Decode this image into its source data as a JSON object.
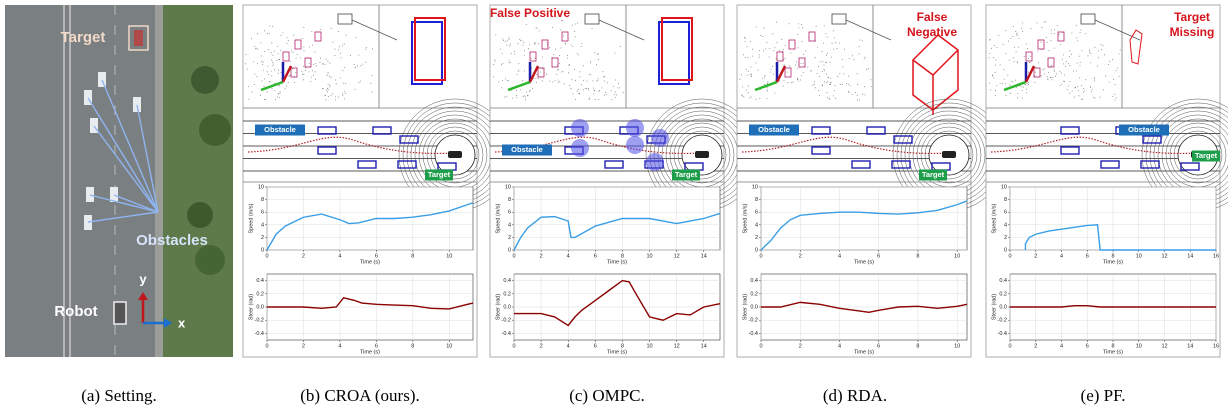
{
  "setting": {
    "target": "Target",
    "obstacles": "Obstacles",
    "robot": "Robot",
    "axis_y": "y",
    "axis_x": "x"
  },
  "panels": [
    {
      "caption": "(a) Setting."
    },
    {
      "caption": "(b) CROA (ours).",
      "obstacle": "Obstacle",
      "target": "Target"
    },
    {
      "caption": "(c) OMPC.",
      "annotation": [
        "False Positive"
      ],
      "obstacle": "Obstacle",
      "target": "Target"
    },
    {
      "caption": "(d) RDA.",
      "annotation": [
        "False",
        "Negative"
      ],
      "obstacle": "Obstacle",
      "target": "Target"
    },
    {
      "caption": "(e) PF.",
      "annotation": [
        "Target",
        "Missing"
      ],
      "obstacle": "Obstacle",
      "target": "Target"
    }
  ],
  "chart_data": [
    {
      "type": "line",
      "ylabel": "Speed (m/s)",
      "xlabel": "Time (s)",
      "color": "#3a9ee6",
      "grid": true,
      "x": [
        0,
        0.5,
        1,
        2,
        3,
        4,
        4.5,
        5,
        6,
        7,
        8,
        9,
        10,
        11,
        11.3
      ],
      "values": [
        0,
        2.5,
        3.8,
        5.2,
        5.7,
        4.8,
        4.2,
        4.3,
        5,
        5,
        5.2,
        5.6,
        6.2,
        7.2,
        7.5
      ],
      "xlim": [
        0,
        11.3
      ],
      "ylim": [
        0,
        10
      ],
      "xticks": [
        0,
        2,
        4,
        6,
        8,
        10
      ],
      "yticks": [
        0,
        2,
        4,
        6,
        8,
        10
      ]
    },
    {
      "type": "line",
      "ylabel": "Steer (rad)",
      "xlabel": "Time (s)",
      "color": "#8b0000",
      "grid": true,
      "x": [
        0,
        1,
        2,
        3,
        3.8,
        4.2,
        4.8,
        5.2,
        6,
        7,
        8,
        9,
        10,
        11,
        11.3
      ],
      "values": [
        0,
        0,
        0,
        -0.02,
        0,
        0.14,
        0.1,
        0.06,
        0.04,
        0.03,
        0.02,
        -0.02,
        -0.03,
        0.04,
        0.06
      ],
      "xlim": [
        0,
        11.3
      ],
      "ylim": [
        -0.5,
        0.5
      ],
      "xticks": [
        0,
        2,
        4,
        6,
        8,
        10
      ],
      "yticks": [
        -0.4,
        -0.2,
        {
          "value": 0,
          "label": "0.0"
        },
        0.2,
        0.4
      ]
    },
    {
      "type": "line",
      "ylabel": "Speed (m/s)",
      "xlabel": "Time (s)",
      "color": "#3a9ee6",
      "grid": true,
      "x": [
        0,
        0.5,
        1,
        2,
        3,
        4,
        4.2,
        4.5,
        6,
        8,
        10,
        12,
        14,
        15.2
      ],
      "values": [
        0,
        2,
        3.5,
        5.2,
        5.3,
        4.6,
        2,
        2,
        3.8,
        5,
        5,
        4.2,
        5,
        5.8
      ],
      "xlim": [
        0,
        15.2
      ],
      "ylim": [
        0,
        10
      ],
      "xticks": [
        0,
        2,
        4,
        6,
        8,
        10,
        12,
        14
      ],
      "yticks": [
        0,
        2,
        4,
        6,
        8,
        10
      ]
    },
    {
      "type": "line",
      "ylabel": "Steer (rad)",
      "xlabel": "Time (s)",
      "color": "#8b0000",
      "grid": true,
      "x": [
        0,
        2,
        3,
        4,
        4.5,
        5,
        6,
        7,
        8,
        8.5,
        9,
        10,
        11,
        12,
        13,
        14,
        15.2
      ],
      "values": [
        -0.1,
        -0.1,
        -0.15,
        -0.28,
        -0.15,
        -0.05,
        0.1,
        0.25,
        0.4,
        0.38,
        0.2,
        -0.15,
        -0.2,
        -0.1,
        -0.12,
        0,
        0.05
      ],
      "xlim": [
        0,
        15.2
      ],
      "ylim": [
        -0.5,
        0.5
      ],
      "xticks": [
        0,
        2,
        4,
        6,
        8,
        10,
        12,
        14
      ],
      "yticks": [
        -0.4,
        -0.2,
        {
          "value": 0,
          "label": "0.0"
        },
        0.2,
        0.4
      ]
    },
    {
      "type": "line",
      "ylabel": "Speed (m/s)",
      "xlabel": "Time (s)",
      "color": "#3a9ee6",
      "grid": true,
      "x": [
        0,
        0.5,
        1,
        1.5,
        2,
        3,
        4,
        5,
        6,
        7,
        8,
        9,
        10,
        10.5
      ],
      "values": [
        0,
        1.5,
        3.5,
        4.8,
        5.5,
        5.8,
        6,
        6,
        5.8,
        5.7,
        5.9,
        6.3,
        7.2,
        7.8
      ],
      "xlim": [
        0,
        10.5
      ],
      "ylim": [
        0,
        10
      ],
      "xticks": [
        0,
        2,
        4,
        6,
        8,
        10
      ],
      "yticks": [
        0,
        2,
        4,
        6,
        8,
        10
      ]
    },
    {
      "type": "line",
      "ylabel": "Steer (rad)",
      "xlabel": "Time (s)",
      "color": "#8b0000",
      "grid": true,
      "x": [
        0,
        1,
        2,
        3,
        4,
        5,
        5.5,
        6,
        7,
        8,
        9,
        10,
        10.5
      ],
      "values": [
        0,
        0,
        0.07,
        0.04,
        -0.02,
        -0.06,
        -0.08,
        -0.05,
        0,
        0.01,
        -0.02,
        0.01,
        0.04
      ],
      "xlim": [
        0,
        10.5
      ],
      "ylim": [
        -0.5,
        0.5
      ],
      "xticks": [
        0,
        2,
        4,
        6,
        8,
        10
      ],
      "yticks": [
        -0.4,
        -0.2,
        {
          "value": 0,
          "label": "0.0"
        },
        0.2,
        0.4
      ]
    },
    {
      "type": "line",
      "ylabel": "Speed (m/s)",
      "xlabel": "Time (s)",
      "color": "#3a9ee6",
      "grid": true,
      "x": [
        1.2,
        1.2,
        1.5,
        2,
        3,
        4,
        5,
        6,
        6.8,
        7,
        16
      ],
      "values": [
        0,
        1,
        2,
        2.5,
        3,
        3.3,
        3.6,
        3.9,
        4,
        0,
        0
      ],
      "xlim": [
        0,
        16
      ],
      "ylim": [
        0,
        10
      ],
      "xticks": [
        0,
        2,
        4,
        6,
        8,
        10,
        12,
        14,
        16
      ],
      "yticks": [
        0,
        2,
        4,
        6,
        8,
        10
      ]
    },
    {
      "type": "line",
      "ylabel": "Steer (rad)",
      "xlabel": "Time (s)",
      "color": "#8b0000",
      "grid": true,
      "x": [
        0,
        4,
        5,
        6,
        7,
        8,
        16
      ],
      "values": [
        0,
        0,
        0.02,
        0.02,
        0,
        0,
        0
      ],
      "xlim": [
        0,
        16
      ],
      "ylim": [
        -0.5,
        0.5
      ],
      "xticks": [
        0,
        2,
        4,
        6,
        8,
        10,
        12,
        14,
        16
      ],
      "yticks": [
        -0.4,
        -0.2,
        {
          "value": 0,
          "label": "0.0"
        },
        0.2,
        0.4
      ]
    }
  ]
}
